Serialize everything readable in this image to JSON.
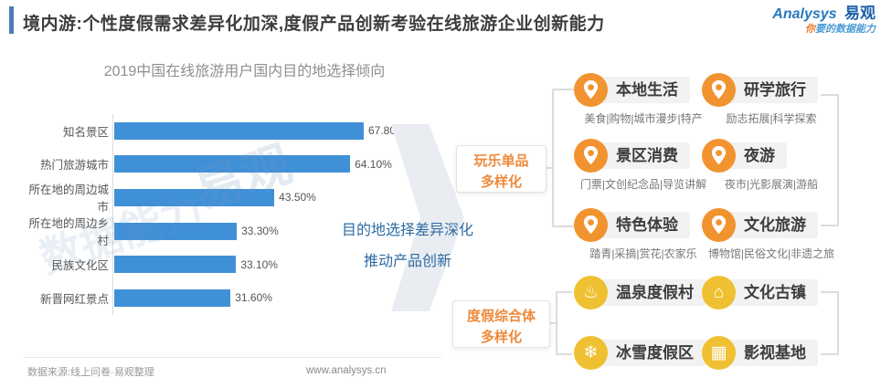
{
  "header": {
    "title": "境内游:个性度假需求差异化加深,度假产品创新考验在线旅游企业创新能力",
    "accent_color": "#4a7ebb",
    "logo": {
      "brand_en": "Analysys",
      "brand_cn": "易观",
      "tagline_prefix": "你",
      "tagline_rest": "要的数据能力"
    }
  },
  "chart_data": {
    "type": "bar",
    "orientation": "horizontal",
    "title": "2019中国在线旅游用户国内目的地选择倾向",
    "categories": [
      "知名景区",
      "热门旅游城市",
      "所在地的周边城市",
      "所在地的周边乡村",
      "民族文化区",
      "新晋网红景点"
    ],
    "values": [
      67.8,
      64.1,
      43.5,
      33.3,
      33.1,
      31.6
    ],
    "labels": [
      "67.80%",
      "64.10%",
      "43.50%",
      "33.30%",
      "33.10%",
      "31.60%"
    ],
    "value_unit": "%",
    "xlim": [
      0,
      75
    ],
    "grid": false,
    "bar_color": "#4090d8",
    "legend": null
  },
  "insight": {
    "line1": "目的地选择差异深化",
    "line2": "推动产品创新"
  },
  "flow_labels": {
    "group1_line1": "玩乐单品",
    "group1_line2": "多样化",
    "group2_line1": "度假综合体",
    "group2_line2": "多样化"
  },
  "items": [
    {
      "title": "本地生活",
      "sub": "美食|购物|城市漫步|特产",
      "icon": "map-pin"
    },
    {
      "title": "研学旅行",
      "sub": "励志拓展|科学探索",
      "icon": "map-pin"
    },
    {
      "title": "景区消费",
      "sub": "门票|文创纪念品|导览讲解",
      "icon": "map-pin"
    },
    {
      "title": "夜游",
      "sub": "夜市|光影展演|游船",
      "icon": "map-pin"
    },
    {
      "title": "特色体验",
      "sub": "踏青|采摘|赏花|农家乐",
      "icon": "map-pin"
    },
    {
      "title": "文化旅游",
      "sub": "博物馆|民俗文化|非遗之旅",
      "icon": "map-pin"
    }
  ],
  "resorts": [
    {
      "title": "温泉度假村",
      "icon": "hot-spring"
    },
    {
      "title": "文化古镇",
      "icon": "ancient-town"
    },
    {
      "title": "冰雪度假区",
      "icon": "snowflake"
    },
    {
      "title": "影视基地",
      "icon": "film-studio"
    }
  ],
  "watermark": {
    "text1": "易观",
    "text2": "数据能力"
  },
  "footer": {
    "source": "数据来源:线上问卷·易观整理",
    "url": "www.analysys.cn"
  },
  "colors": {
    "bar": "#4090d8",
    "orange_label": "#ED8A3C",
    "orange_icon": "#F1932E",
    "gold_icon": "#EFC132",
    "insight_blue": "#2e6ca3",
    "logo_blue": "#2878be"
  }
}
